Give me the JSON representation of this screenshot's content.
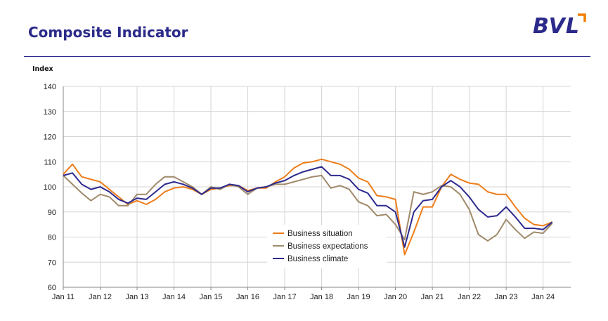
{
  "header": {
    "title": "Composite Indicator",
    "logo_text": "BVL",
    "colors": {
      "title": "#2b2a8a",
      "logo_accent": "#f07d00",
      "rule": "#2b2a8a"
    }
  },
  "chart_data": {
    "type": "line",
    "ylabel": "Index",
    "xlabel": "",
    "ylim": [
      60,
      140
    ],
    "yticks": [
      60,
      70,
      80,
      90,
      100,
      110,
      120,
      130,
      140
    ],
    "x_start_month": "2011-01",
    "x_end_month": "2024-10",
    "xticks": [
      "Jan 11",
      "Jan 12",
      "Jan 13",
      "Jan 14",
      "Jan 15",
      "Jan 16",
      "Jan 17",
      "Jan 18",
      "Jan 19",
      "Jan 20",
      "Jan 21",
      "Jan 22",
      "Jan 23",
      "Jan 24"
    ],
    "grid": true,
    "legend_position": "lower-center",
    "series": [
      {
        "name": "Business situation",
        "color": "#ee7d1a",
        "points": [
          [
            "2011-01",
            105
          ],
          [
            "2011-04",
            109
          ],
          [
            "2011-07",
            104
          ],
          [
            "2011-10",
            103
          ],
          [
            "2012-01",
            102
          ],
          [
            "2012-04",
            99
          ],
          [
            "2012-07",
            96
          ],
          [
            "2012-10",
            93
          ],
          [
            "2013-01",
            94.5
          ],
          [
            "2013-04",
            93
          ],
          [
            "2013-07",
            95
          ],
          [
            "2013-10",
            98
          ],
          [
            "2014-01",
            99.5
          ],
          [
            "2014-04",
            100
          ],
          [
            "2014-07",
            99
          ],
          [
            "2014-10",
            97
          ],
          [
            "2015-01",
            99
          ],
          [
            "2015-04",
            99.5
          ],
          [
            "2015-07",
            100.5
          ],
          [
            "2015-10",
            100.5
          ],
          [
            "2016-01",
            98.5
          ],
          [
            "2016-04",
            99.5
          ],
          [
            "2016-07",
            99.5
          ],
          [
            "2016-10",
            102
          ],
          [
            "2017-01",
            104
          ],
          [
            "2017-04",
            107.5
          ],
          [
            "2017-07",
            109.5
          ],
          [
            "2017-10",
            110
          ],
          [
            "2018-01",
            111
          ],
          [
            "2018-04",
            110
          ],
          [
            "2018-07",
            109
          ],
          [
            "2018-10",
            107
          ],
          [
            "2019-01",
            103.5
          ],
          [
            "2019-04",
            102
          ],
          [
            "2019-07",
            96.5
          ],
          [
            "2019-10",
            96
          ],
          [
            "2020-01",
            95
          ],
          [
            "2020-04",
            73
          ],
          [
            "2020-07",
            82
          ],
          [
            "2020-10",
            92
          ],
          [
            "2021-01",
            92
          ],
          [
            "2021-04",
            100
          ],
          [
            "2021-07",
            105
          ],
          [
            "2021-10",
            103
          ],
          [
            "2022-01",
            101.5
          ],
          [
            "2022-04",
            101
          ],
          [
            "2022-07",
            98
          ],
          [
            "2022-10",
            97
          ],
          [
            "2023-01",
            97
          ],
          [
            "2023-04",
            92
          ],
          [
            "2023-07",
            87.5
          ],
          [
            "2023-10",
            85
          ],
          [
            "2024-01",
            84.5
          ],
          [
            "2024-04",
            86
          ]
        ]
      },
      {
        "name": "Business expectations",
        "color": "#a08a6a",
        "points": [
          [
            "2011-01",
            104.5
          ],
          [
            "2011-04",
            101
          ],
          [
            "2011-07",
            97.5
          ],
          [
            "2011-10",
            94.5
          ],
          [
            "2012-01",
            97
          ],
          [
            "2012-04",
            96
          ],
          [
            "2012-07",
            92.5
          ],
          [
            "2012-10",
            92.5
          ],
          [
            "2013-01",
            97
          ],
          [
            "2013-04",
            97
          ],
          [
            "2013-07",
            101
          ],
          [
            "2013-10",
            104
          ],
          [
            "2014-01",
            104
          ],
          [
            "2014-04",
            102
          ],
          [
            "2014-07",
            100
          ],
          [
            "2014-10",
            97
          ],
          [
            "2015-01",
            100
          ],
          [
            "2015-04",
            99
          ],
          [
            "2015-07",
            101
          ],
          [
            "2015-10",
            100
          ],
          [
            "2016-01",
            97
          ],
          [
            "2016-04",
            99.5
          ],
          [
            "2016-07",
            100
          ],
          [
            "2016-10",
            101
          ],
          [
            "2017-01",
            101
          ],
          [
            "2017-04",
            102
          ],
          [
            "2017-07",
            103
          ],
          [
            "2017-10",
            104
          ],
          [
            "2018-01",
            104.5
          ],
          [
            "2018-04",
            99.5
          ],
          [
            "2018-07",
            100.5
          ],
          [
            "2018-10",
            99
          ],
          [
            "2019-01",
            94
          ],
          [
            "2019-04",
            92.5
          ],
          [
            "2019-07",
            88.5
          ],
          [
            "2019-10",
            89
          ],
          [
            "2020-01",
            85
          ],
          [
            "2020-04",
            79
          ],
          [
            "2020-07",
            98
          ],
          [
            "2020-10",
            97
          ],
          [
            "2021-01",
            98
          ],
          [
            "2021-04",
            100.5
          ],
          [
            "2021-07",
            100
          ],
          [
            "2021-10",
            97
          ],
          [
            "2022-01",
            91
          ],
          [
            "2022-04",
            81
          ],
          [
            "2022-07",
            78.5
          ],
          [
            "2022-10",
            81
          ],
          [
            "2023-01",
            87
          ],
          [
            "2023-04",
            83
          ],
          [
            "2023-07",
            79.5
          ],
          [
            "2023-10",
            82
          ],
          [
            "2024-01",
            81.5
          ],
          [
            "2024-04",
            85.5
          ]
        ]
      },
      {
        "name": "Business climate",
        "color": "#2d2a8e",
        "points": [
          [
            "2011-01",
            104.5
          ],
          [
            "2011-04",
            105.5
          ],
          [
            "2011-07",
            101
          ],
          [
            "2011-10",
            99
          ],
          [
            "2012-01",
            100
          ],
          [
            "2012-04",
            98
          ],
          [
            "2012-07",
            95
          ],
          [
            "2012-10",
            93.5
          ],
          [
            "2013-01",
            95.5
          ],
          [
            "2013-04",
            95
          ],
          [
            "2013-07",
            98
          ],
          [
            "2013-10",
            101
          ],
          [
            "2014-01",
            102
          ],
          [
            "2014-04",
            101
          ],
          [
            "2014-07",
            99.5
          ],
          [
            "2014-10",
            97
          ],
          [
            "2015-01",
            99.5
          ],
          [
            "2015-04",
            99.5
          ],
          [
            "2015-07",
            101
          ],
          [
            "2015-10",
            100.5
          ],
          [
            "2016-01",
            98
          ],
          [
            "2016-04",
            99.5
          ],
          [
            "2016-07",
            100
          ],
          [
            "2016-10",
            101.5
          ],
          [
            "2017-01",
            102.5
          ],
          [
            "2017-04",
            104.5
          ],
          [
            "2017-07",
            106
          ],
          [
            "2017-10",
            107
          ],
          [
            "2018-01",
            108
          ],
          [
            "2018-04",
            104.5
          ],
          [
            "2018-07",
            104.5
          ],
          [
            "2018-10",
            103
          ],
          [
            "2019-01",
            99
          ],
          [
            "2019-04",
            97.5
          ],
          [
            "2019-07",
            92.5
          ],
          [
            "2019-10",
            92.5
          ],
          [
            "2020-01",
            90
          ],
          [
            "2020-04",
            76
          ],
          [
            "2020-07",
            90
          ],
          [
            "2020-10",
            94.5
          ],
          [
            "2021-01",
            95
          ],
          [
            "2021-04",
            100
          ],
          [
            "2021-07",
            102.5
          ],
          [
            "2021-10",
            100
          ],
          [
            "2022-01",
            96
          ],
          [
            "2022-04",
            91
          ],
          [
            "2022-07",
            88
          ],
          [
            "2022-10",
            88.5
          ],
          [
            "2023-01",
            92
          ],
          [
            "2023-04",
            88
          ],
          [
            "2023-07",
            83.5
          ],
          [
            "2023-10",
            83.5
          ],
          [
            "2024-01",
            83
          ],
          [
            "2024-04",
            86
          ]
        ]
      }
    ]
  }
}
